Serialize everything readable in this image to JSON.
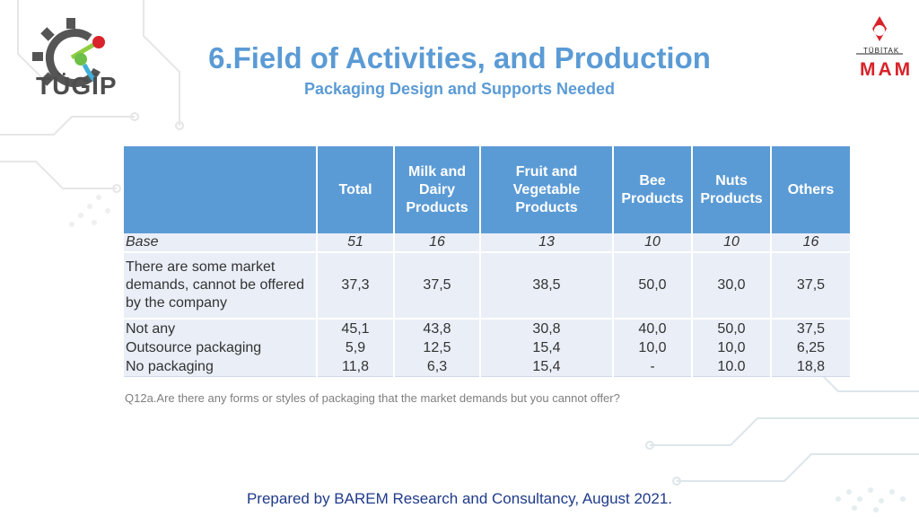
{
  "header": {
    "title": "6.Field of Activities, and Production",
    "subtitle": "Packaging Design and Supports Needed"
  },
  "logos": {
    "left_text": "TÜGİP",
    "right_top": "TÜBİTAK",
    "right_main": "MAM"
  },
  "table": {
    "columns": [
      "",
      "Total",
      "Milk and Dairy Products",
      "Fruit and Vegetable Products",
      "Bee Products",
      "Nuts Products",
      "Others"
    ],
    "rows": [
      {
        "label": "Base",
        "values": [
          "51",
          "16",
          "13",
          "10",
          "10",
          "16"
        ]
      },
      {
        "label": "There are some market demands, cannot be offered by the company",
        "values": [
          "37,3",
          "37,5",
          "38,5",
          "50,0",
          "30,0",
          "37,5"
        ]
      },
      {
        "label": "Not any",
        "values": [
          "45,1",
          "43,8",
          "30,8",
          "40,0",
          "50,0",
          "37,5"
        ]
      },
      {
        "label": "Outsource packaging",
        "values": [
          "5,9",
          "12,5",
          "15,4",
          "10,0",
          "10,0",
          "6,25"
        ]
      },
      {
        "label": "No packaging",
        "values": [
          "11,8",
          "6,3",
          "15,4",
          "-",
          "10.0",
          "18,8"
        ]
      }
    ]
  },
  "question": "Q12a.Are there any forms or styles of packaging that the market demands but you cannot offer?",
  "footer": "Prepared by BAREM Research and Consultancy, August 2021.",
  "colors": {
    "accent": "#5b9bd5",
    "row_bg": "#e9eef7",
    "footer": "#1f3a8a",
    "logo_red": "#d8232a"
  }
}
